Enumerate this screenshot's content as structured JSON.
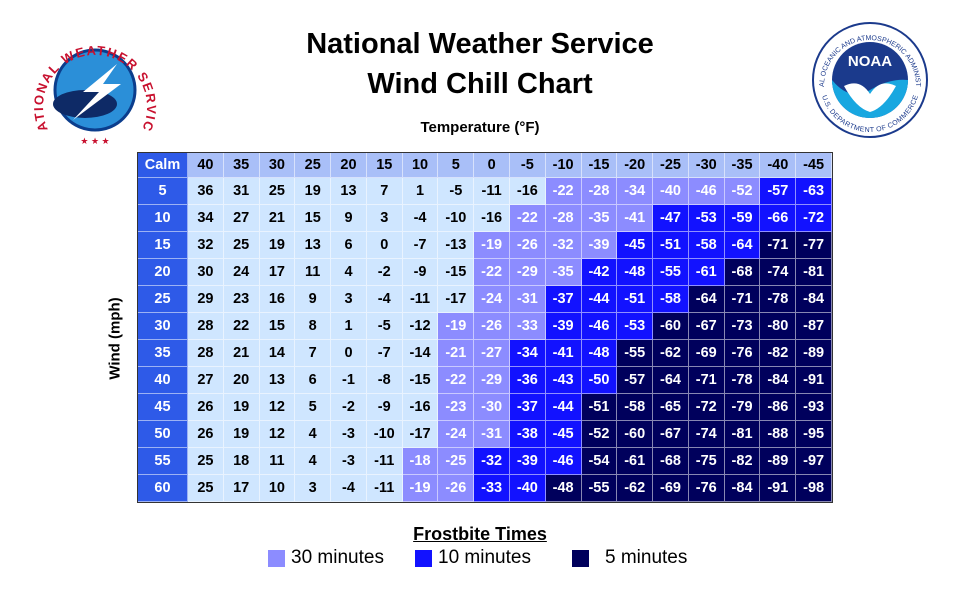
{
  "logos": {
    "nws": "NATIONAL WEATHER SERVICE",
    "noaa": {
      "name": "NOAA",
      "top": "NATIONAL OCEANIC AND ATMOSPHERIC ADMINISTRATION",
      "bottom": "U.S. DEPARTMENT OF COMMERCE"
    }
  },
  "header": {
    "title_line1": "National Weather Service",
    "title_line2": "Wind Chill Chart"
  },
  "table": {
    "column_axis": "Temperature (°F)",
    "row_axis": "Wind (mph)",
    "corner": "Calm",
    "cell_colors": [
      "#cfe6ff",
      "#8c8cff",
      "#1212ff",
      "#00005c"
    ],
    "temperatures": [
      40,
      35,
      30,
      25,
      20,
      15,
      10,
      5,
      0,
      -5,
      -10,
      -15,
      -20,
      -25,
      -30,
      -35,
      -40,
      -45
    ],
    "rows": [
      {
        "wind": 5,
        "values": [
          36,
          31,
          25,
          19,
          13,
          7,
          1,
          -5,
          -11,
          -16,
          -22,
          -28,
          -34,
          -40,
          -46,
          -52,
          -57,
          -63
        ],
        "frostbite": [
          0,
          0,
          0,
          0,
          0,
          0,
          0,
          0,
          0,
          0,
          1,
          1,
          1,
          1,
          1,
          1,
          2,
          2
        ]
      },
      {
        "wind": 10,
        "values": [
          34,
          27,
          21,
          15,
          9,
          3,
          -4,
          -10,
          -16,
          -22,
          -28,
          -35,
          -41,
          -47,
          -53,
          -59,
          -66,
          -72
        ],
        "frostbite": [
          0,
          0,
          0,
          0,
          0,
          0,
          0,
          0,
          0,
          1,
          1,
          1,
          1,
          2,
          2,
          2,
          2,
          2
        ]
      },
      {
        "wind": 15,
        "values": [
          32,
          25,
          19,
          13,
          6,
          0,
          -7,
          -13,
          -19,
          -26,
          -32,
          -39,
          -45,
          -51,
          -58,
          -64,
          -71,
          -77
        ],
        "frostbite": [
          0,
          0,
          0,
          0,
          0,
          0,
          0,
          0,
          1,
          1,
          1,
          1,
          2,
          2,
          2,
          2,
          3,
          3
        ]
      },
      {
        "wind": 20,
        "values": [
          30,
          24,
          17,
          11,
          4,
          -2,
          -9,
          -15,
          -22,
          -29,
          -35,
          -42,
          -48,
          -55,
          -61,
          -68,
          -74,
          -81
        ],
        "frostbite": [
          0,
          0,
          0,
          0,
          0,
          0,
          0,
          0,
          1,
          1,
          1,
          2,
          2,
          2,
          2,
          3,
          3,
          3
        ]
      },
      {
        "wind": 25,
        "values": [
          29,
          23,
          16,
          9,
          3,
          -4,
          -11,
          -17,
          -24,
          -31,
          -37,
          -44,
          -51,
          -58,
          -64,
          -71,
          -78,
          -84
        ],
        "frostbite": [
          0,
          0,
          0,
          0,
          0,
          0,
          0,
          0,
          1,
          1,
          2,
          2,
          2,
          2,
          3,
          3,
          3,
          3
        ]
      },
      {
        "wind": 30,
        "values": [
          28,
          22,
          15,
          8,
          1,
          -5,
          -12,
          -19,
          -26,
          -33,
          -39,
          -46,
          -53,
          -60,
          -67,
          -73,
          -80,
          -87
        ],
        "frostbite": [
          0,
          0,
          0,
          0,
          0,
          0,
          0,
          1,
          1,
          1,
          2,
          2,
          2,
          3,
          3,
          3,
          3,
          3
        ]
      },
      {
        "wind": 35,
        "values": [
          28,
          21,
          14,
          7,
          0,
          -7,
          -14,
          -21,
          -27,
          -34,
          -41,
          -48,
          -55,
          -62,
          -69,
          -76,
          -82,
          -89
        ],
        "frostbite": [
          0,
          0,
          0,
          0,
          0,
          0,
          0,
          1,
          1,
          2,
          2,
          2,
          3,
          3,
          3,
          3,
          3,
          3
        ]
      },
      {
        "wind": 40,
        "values": [
          27,
          20,
          13,
          6,
          -1,
          -8,
          -15,
          -22,
          -29,
          -36,
          -43,
          -50,
          -57,
          -64,
          -71,
          -78,
          -84,
          -91
        ],
        "frostbite": [
          0,
          0,
          0,
          0,
          0,
          0,
          0,
          1,
          1,
          2,
          2,
          2,
          3,
          3,
          3,
          3,
          3,
          3
        ]
      },
      {
        "wind": 45,
        "values": [
          26,
          19,
          12,
          5,
          -2,
          -9,
          -16,
          -23,
          -30,
          -37,
          -44,
          -51,
          -58,
          -65,
          -72,
          -79,
          -86,
          -93
        ],
        "frostbite": [
          0,
          0,
          0,
          0,
          0,
          0,
          0,
          1,
          1,
          2,
          2,
          3,
          3,
          3,
          3,
          3,
          3,
          3
        ]
      },
      {
        "wind": 50,
        "values": [
          26,
          19,
          12,
          4,
          -3,
          -10,
          -17,
          -24,
          -31,
          -38,
          -45,
          -52,
          -60,
          -67,
          -74,
          -81,
          -88,
          -95
        ],
        "frostbite": [
          0,
          0,
          0,
          0,
          0,
          0,
          0,
          1,
          1,
          2,
          2,
          3,
          3,
          3,
          3,
          3,
          3,
          3
        ]
      },
      {
        "wind": 55,
        "values": [
          25,
          18,
          11,
          4,
          -3,
          -11,
          -18,
          -25,
          -32,
          -39,
          -46,
          -54,
          -61,
          -68,
          -75,
          -82,
          -89,
          -97
        ],
        "frostbite": [
          0,
          0,
          0,
          0,
          0,
          0,
          1,
          1,
          2,
          2,
          2,
          3,
          3,
          3,
          3,
          3,
          3,
          3
        ]
      },
      {
        "wind": 60,
        "values": [
          25,
          17,
          10,
          3,
          -4,
          -11,
          -19,
          -26,
          -33,
          -40,
          -48,
          -55,
          -62,
          -69,
          -76,
          -84,
          -91,
          -98
        ],
        "frostbite": [
          0,
          0,
          0,
          0,
          0,
          0,
          1,
          1,
          2,
          2,
          3,
          3,
          3,
          3,
          3,
          3,
          3,
          3
        ]
      }
    ]
  },
  "legend": {
    "title": "Frostbite Times",
    "items": [
      {
        "label": "30 minutes",
        "zone": 1
      },
      {
        "label": "10 minutes",
        "zone": 2
      },
      {
        "label": "5 minutes",
        "zone": 3
      }
    ]
  }
}
